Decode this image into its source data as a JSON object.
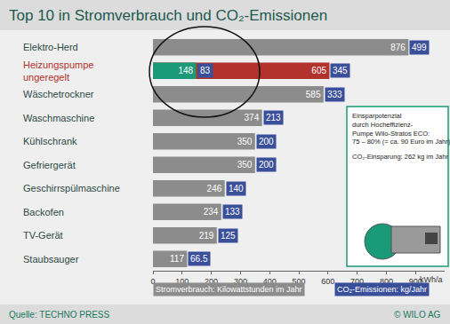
{
  "chart_data": {
    "type": "bar",
    "title": "Top 10 in Stromverbrauch und CO₂-Emissionen",
    "orientation": "horizontal",
    "categories": [
      "Elektro-Herd",
      "Heizungspumpe\nungeregelt",
      "Wäschetrockner",
      "Waschmaschine",
      "Kühlschrank",
      "Gefriergerät",
      "Geschirrspülmaschine",
      "Backofen",
      "TV-Gerät",
      "Staubsauger"
    ],
    "series": [
      {
        "name": "Stromverbrauch: Kilowattstunden im Jahr",
        "type": "bar",
        "color": "#8c8c8c",
        "colors": [
          "#8c8c8c",
          "#b3322b",
          "#8c8c8c",
          "#8c8c8c",
          "#8c8c8c",
          "#8c8c8c",
          "#8c8c8c",
          "#8c8c8c",
          "#8c8c8c",
          "#8c8c8c"
        ],
        "values": [
          876,
          605,
          585,
          374,
          350,
          350,
          246,
          234,
          219,
          117
        ]
      },
      {
        "name": "CO₂-Emissionen: kg/Jahr",
        "type": "label",
        "color": "#3a4f99",
        "values": [
          499,
          345,
          333,
          213,
          200,
          200,
          140,
          133,
          125,
          66.5
        ]
      },
      {
        "type": "bar",
        "color": "#1a9a78",
        "values": [
          null,
          148,
          null,
          null,
          null,
          null,
          null,
          null,
          null,
          null
        ]
      },
      {
        "type": "label",
        "color": "#3a4f99",
        "values": [
          null,
          83,
          null,
          null,
          null,
          null,
          null,
          null,
          null,
          null
        ]
      }
    ],
    "xlabel": "kWh/a",
    "xlim": [
      0,
      1000
    ],
    "xticks": [
      0,
      100,
      200,
      300,
      400,
      500,
      600,
      700,
      800,
      900
    ],
    "data_labels": true,
    "grid": false,
    "legend": "bottom",
    "tick_labels": "x",
    "annotations": [
      "Einsparpotenzial\ndurch Hocheffizienz-\nPumpe Wilo-Stratos ECO:\n75 – 80% (= ca. 90 Euro im Jahr)",
      "CO₂-Einsparung: 262 kg im Jahr"
    ],
    "source": "Quelle: TECHNO PRESS",
    "copyright": "© WILO AG"
  }
}
